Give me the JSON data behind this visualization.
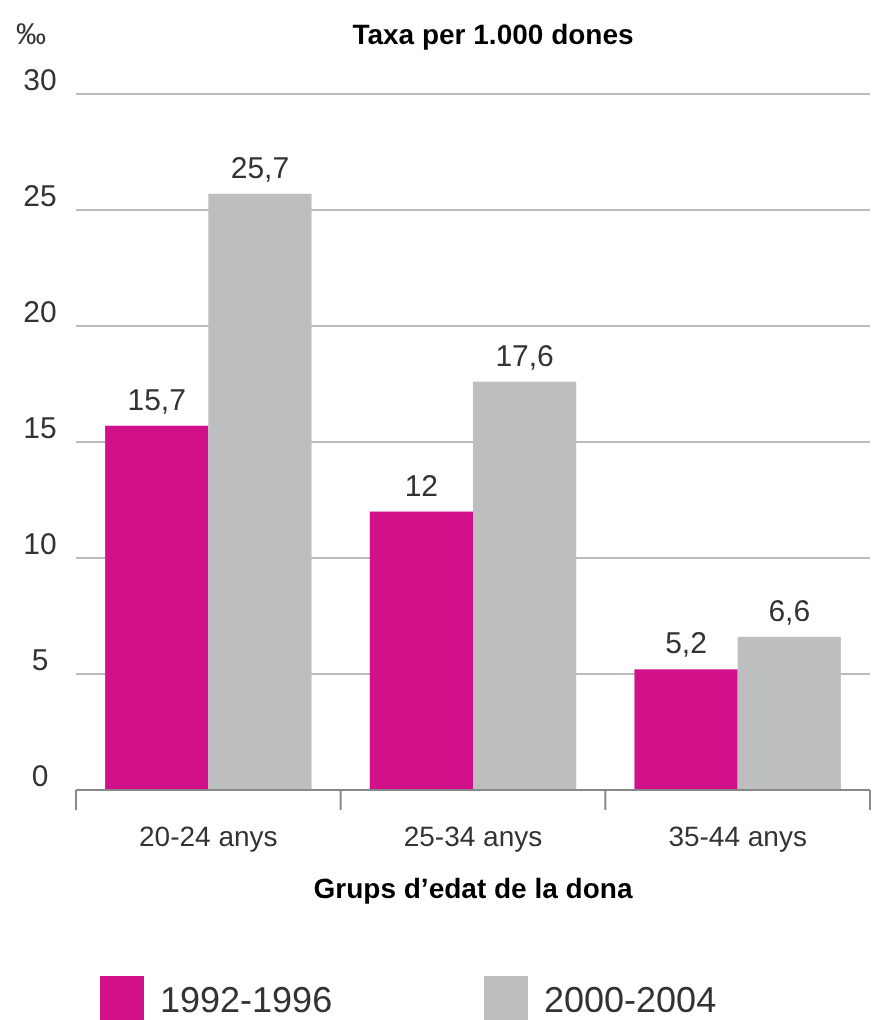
{
  "chart_data": {
    "type": "bar",
    "title": "Taxa per 1.000 dones",
    "ylabel": "‰",
    "xlabel": "Grups d’edat de la dona",
    "categories": [
      "20-24 anys",
      "25-34 anys",
      "35-44 anys"
    ],
    "series": [
      {
        "name": "1992-1996",
        "color": "#d1108a",
        "values": [
          15.7,
          12,
          5.2
        ],
        "value_labels": [
          "15,7",
          "12",
          "5,2"
        ]
      },
      {
        "name": "2000-2004",
        "color": "#bdbec0",
        "values": [
          25.7,
          17.6,
          6.6
        ],
        "value_labels": [
          "25,7",
          "17,6",
          "6,6"
        ]
      }
    ],
    "ylim": [
      0,
      30
    ],
    "yticks": [
      0,
      5,
      10,
      15,
      20,
      25,
      30
    ],
    "grid": "y",
    "legend": "bottom"
  }
}
